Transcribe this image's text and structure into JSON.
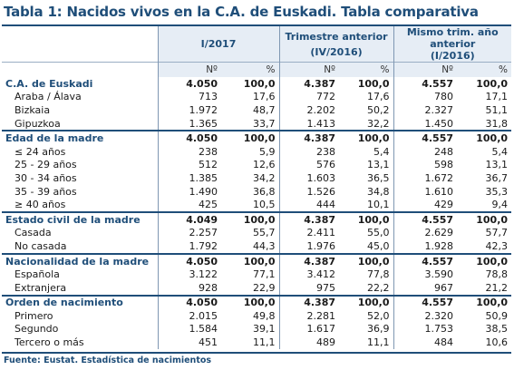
{
  "title": "Tabla 1: Nacidos vivos en la C.A. de Euskadi. Tabla comparativa",
  "headers": {
    "col1": "I/2017",
    "col2_line1": "Trimestre anterior",
    "col2_line2": "(IV/2016)",
    "col3_line1": "Mismo trim. año",
    "col3_line2": "anterior",
    "col3_line3": "(I/2016)",
    "num": "Nº",
    "pct": "%"
  },
  "rows": [
    {
      "label": "C.A. de Euskadi",
      "v": [
        "4.050",
        "100,0",
        "4.387",
        "100,0",
        "4.557",
        "100,0"
      ]
    },
    {
      "label": "Araba / Álava",
      "v": [
        "713",
        "17,6",
        "772",
        "17,6",
        "780",
        "17,1"
      ]
    },
    {
      "label": "Bizkaia",
      "v": [
        "1.972",
        "48,7",
        "2.202",
        "50,2",
        "2.327",
        "51,1"
      ]
    },
    {
      "label": "Gipuzkoa",
      "v": [
        "1.365",
        "33,7",
        "1.413",
        "32,2",
        "1.450",
        "31,8"
      ]
    },
    {
      "label": "Edad de la madre",
      "v": [
        "4.050",
        "100,0",
        "4.387",
        "100,0",
        "4.557",
        "100,0"
      ]
    },
    {
      "label": "≤ 24 años",
      "v": [
        "238",
        "5,9",
        "238",
        "5,4",
        "248",
        "5,4"
      ]
    },
    {
      "label": "25 - 29 años",
      "v": [
        "512",
        "12,6",
        "576",
        "13,1",
        "598",
        "13,1"
      ]
    },
    {
      "label": "30 - 34 años",
      "v": [
        "1.385",
        "34,2",
        "1.603",
        "36,5",
        "1.672",
        "36,7"
      ]
    },
    {
      "label": "35 - 39 años",
      "v": [
        "1.490",
        "36,8",
        "1.526",
        "34,8",
        "1.610",
        "35,3"
      ]
    },
    {
      "label": "≥ 40 años",
      "v": [
        "425",
        "10,5",
        "444",
        "10,1",
        "429",
        "9,4"
      ]
    },
    {
      "label": "Estado civil de la madre",
      "v": [
        "4.049",
        "100,0",
        "4.387",
        "100,0",
        "4.557",
        "100,0"
      ]
    },
    {
      "label": "Casada",
      "v": [
        "2.257",
        "55,7",
        "2.411",
        "55,0",
        "2.629",
        "57,7"
      ]
    },
    {
      "label": "No casada",
      "v": [
        "1.792",
        "44,3",
        "1.976",
        "45,0",
        "1.928",
        "42,3"
      ]
    },
    {
      "label": "Nacionalidad de la madre",
      "v": [
        "4.050",
        "100,0",
        "4.387",
        "100,0",
        "4.557",
        "100,0"
      ]
    },
    {
      "label": "Española",
      "v": [
        "3.122",
        "77,1",
        "3.412",
        "77,8",
        "3.590",
        "78,8"
      ]
    },
    {
      "label": "Extranjera",
      "v": [
        "928",
        "22,9",
        "975",
        "22,2",
        "967",
        "21,2"
      ]
    },
    {
      "label": "Orden de nacimiento",
      "v": [
        "4.050",
        "100,0",
        "4.387",
        "100,0",
        "4.557",
        "100,0"
      ]
    },
    {
      "label": "Primero",
      "v": [
        "2.015",
        "49,8",
        "2.281",
        "52,0",
        "2.320",
        "50,9"
      ]
    },
    {
      "label": "Segundo",
      "v": [
        "1.584",
        "39,1",
        "1.617",
        "36,9",
        "1.753",
        "38,5"
      ]
    },
    {
      "label": "Tercero o más",
      "v": [
        "451",
        "11,1",
        "489",
        "11,1",
        "484",
        "10,6"
      ]
    }
  ],
  "source": "Fuente: Eustat. Estadística de nacimientos"
}
